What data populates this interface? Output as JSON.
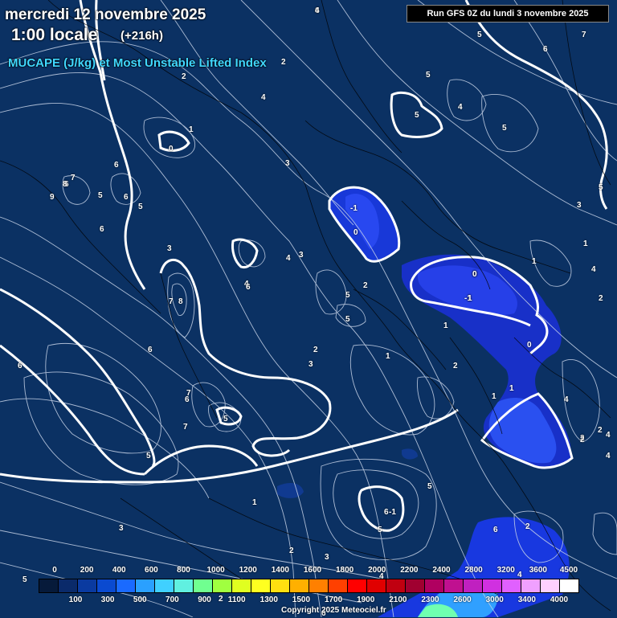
{
  "header": {
    "date": "mercredi 12 novembre 2025",
    "time": "1:00 locale",
    "offset": "(+216h)",
    "field": "MUCAPE (J/kg) et Most Unstable Lifted Index",
    "run": "Run GFS 0Z du lundi 3 novembre 2025"
  },
  "contour_labels": [
    "6",
    "5",
    "7",
    "6",
    "5",
    "4",
    "4",
    "5",
    "3",
    "1",
    "0",
    "2",
    "2",
    "2",
    "1",
    "0",
    "1",
    "3",
    "3",
    "4",
    "5",
    "5",
    "4",
    "1",
    "1",
    "1",
    "2",
    "5",
    "3",
    "8",
    "7",
    "9",
    "5",
    "6",
    "6",
    "6",
    "5",
    "2",
    "6",
    "6",
    "7",
    "8",
    "2",
    "7",
    "6",
    "5",
    "5",
    "7",
    "6",
    "6",
    "5",
    "5",
    "3",
    "2",
    "4",
    "1",
    "4",
    "4",
    "1",
    "4",
    "2",
    "2",
    "0",
    "2",
    "6",
    "3",
    "5",
    "3",
    "4",
    "-1",
    "0",
    "0",
    "-1",
    "2",
    "4",
    "2",
    "5",
    "6",
    "1",
    "-1",
    "6",
    "4"
  ],
  "legend": {
    "top_labels": [
      "0",
      "200",
      "400",
      "600",
      "800",
      "1000",
      "1200",
      "1400",
      "1600",
      "1800",
      "2000",
      "2200",
      "2400",
      "2800",
      "3200",
      "3600",
      "4500"
    ],
    "bottom_labels": [
      "100",
      "300",
      "500",
      "700",
      "900",
      "1100",
      "1300",
      "1500",
      "1700",
      "1900",
      "2100",
      "2300",
      "2600",
      "3000",
      "3400",
      "4000"
    ],
    "colors": [
      "#061a3a",
      "#0a2a6a",
      "#0a3aa0",
      "#0a4ad0",
      "#1a6aff",
      "#2aa0ff",
      "#40d0ff",
      "#60f0e0",
      "#70ff90",
      "#a0ff40",
      "#e0ff20",
      "#ffff20",
      "#ffe010",
      "#ffb000",
      "#ff8000",
      "#ff4000",
      "#ff0000",
      "#e00000",
      "#c00010",
      "#a00030",
      "#b00060",
      "#c01090",
      "#c020c0",
      "#d030e0",
      "#e060ff",
      "#f0a0ff",
      "#ffd0ff",
      "#ffffff"
    ]
  },
  "copyright": "Copyright 2025 Meteociel.fr"
}
